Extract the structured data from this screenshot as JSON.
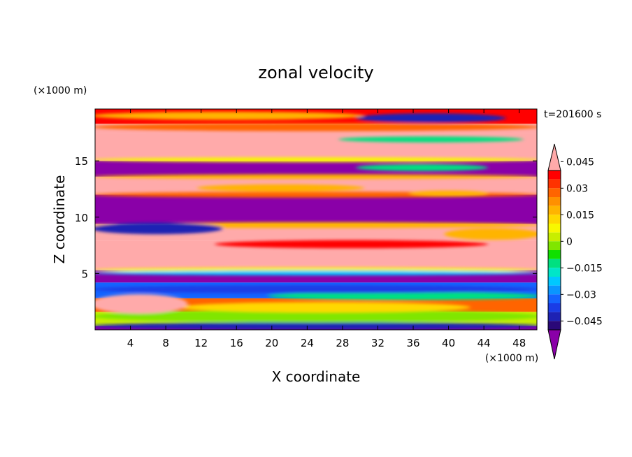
{
  "chart_data": {
    "type": "heatmap",
    "title": "zonal velocity",
    "xlabel": "X coordinate",
    "ylabel": "Z coordinate",
    "x_unit": "(×1000 m)",
    "y_unit": "(×1000 m)",
    "time_label": "t=201600 s",
    "xlim": [
      0,
      50
    ],
    "ylim": [
      0,
      19.6
    ],
    "x_ticks": [
      4,
      8,
      12,
      16,
      20,
      24,
      28,
      32,
      36,
      40,
      44,
      48
    ],
    "y_ticks": [
      5,
      10,
      15
    ],
    "colorbar": {
      "levels": [
        -0.05,
        -0.045,
        -0.04,
        -0.035,
        -0.03,
        -0.025,
        -0.02,
        -0.015,
        -0.01,
        -0.005,
        0,
        0.005,
        0.01,
        0.015,
        0.02,
        0.025,
        0.03,
        0.035,
        0.04,
        0.045,
        0.05
      ],
      "colors": [
        "#8a00a8",
        "#2a0878",
        "#1e22b4",
        "#1a3ce6",
        "#1464ff",
        "#0a96ff",
        "#00c8ff",
        "#00e6c8",
        "#00e080",
        "#10e000",
        "#80e600",
        "#c8ee00",
        "#f8f800",
        "#ffd800",
        "#ffb400",
        "#ff9000",
        "#ff6400",
        "#ff3200",
        "#ff0000",
        "#ffaaaa"
      ],
      "labels": [
        {
          "value": 0.045,
          "text": "0.045"
        },
        {
          "value": 0.03,
          "text": "0.03"
        },
        {
          "value": 0.015,
          "text": "0.015"
        },
        {
          "value": 0,
          "text": "0"
        },
        {
          "value": -0.015,
          "text": "−0.015"
        },
        {
          "value": -0.03,
          "text": "−0.03"
        },
        {
          "value": -0.045,
          "text": "−0.045"
        }
      ]
    },
    "bands": [
      {
        "z0": 0.0,
        "z1": 0.35,
        "value": -0.06
      },
      {
        "z0": 0.35,
        "z1": 1.6,
        "value": 0.005
      },
      {
        "z0": 1.6,
        "z1": 2.8,
        "value": 0.03
      },
      {
        "z0": 2.8,
        "z1": 4.2,
        "value": -0.03
      },
      {
        "z0": 4.2,
        "z1": 5.3,
        "value": -0.06
      },
      {
        "z0": 5.3,
        "z1": 7.9,
        "value": 0.06
      },
      {
        "z0": 7.9,
        "z1": 9.4,
        "value": 0.06
      },
      {
        "z0": 9.4,
        "z1": 12.0,
        "value": -0.06
      },
      {
        "z0": 12.0,
        "z1": 13.6,
        "value": 0.06
      },
      {
        "z0": 13.6,
        "z1": 15.0,
        "value": -0.06
      },
      {
        "z0": 15.0,
        "z1": 17.4,
        "value": 0.06
      },
      {
        "z0": 17.4,
        "z1": 18.3,
        "value": 0.06
      },
      {
        "z0": 18.3,
        "z1": 19.6,
        "value": 0.04
      }
    ],
    "features": [
      {
        "x": [
          0,
          50
        ],
        "z": 0.35,
        "value": -0.04,
        "thick": 0.5
      },
      {
        "x": [
          0,
          50
        ],
        "z": 1.2,
        "value": 0.0,
        "thick": 1.0
      },
      {
        "x": [
          10,
          42
        ],
        "z": 2.0,
        "value": 0.015,
        "thick": 0.8
      },
      {
        "x": [
          0,
          10
        ],
        "z": 2.3,
        "value": 0.06,
        "thick": 1.6
      },
      {
        "x": [
          20,
          50
        ],
        "z": 3.0,
        "value": -0.01,
        "thick": 0.6
      },
      {
        "x": [
          0,
          50
        ],
        "z": 3.6,
        "value": -0.035,
        "thick": 0.6
      },
      {
        "x": [
          0,
          50
        ],
        "z": 5.3,
        "value": 0.01,
        "thick": 0.35
      },
      {
        "x": [
          0,
          50
        ],
        "z": 5.05,
        "value": -0.02,
        "thick": 0.3
      },
      {
        "x": [
          14,
          44
        ],
        "z": 7.6,
        "value": 0.04,
        "thick": 0.6
      },
      {
        "x": [
          0,
          50
        ],
        "z": 9.3,
        "value": 0.02,
        "thick": 0.4
      },
      {
        "x": [
          0,
          14
        ],
        "z": 9.0,
        "value": -0.04,
        "thick": 0.9
      },
      {
        "x": [
          40,
          50
        ],
        "z": 8.5,
        "value": 0.02,
        "thick": 0.9
      },
      {
        "x": [
          0,
          50
        ],
        "z": 12.0,
        "value": 0.03,
        "thick": 0.4
      },
      {
        "x": [
          12,
          30
        ],
        "z": 12.6,
        "value": 0.02,
        "thick": 0.5
      },
      {
        "x": [
          36,
          44
        ],
        "z": 12.1,
        "value": 0.02,
        "thick": 0.4
      },
      {
        "x": [
          0,
          50
        ],
        "z": 13.6,
        "value": 0.02,
        "thick": 0.3
      },
      {
        "x": [
          30,
          44
        ],
        "z": 14.4,
        "value": -0.01,
        "thick": 0.5
      },
      {
        "x": [
          0,
          50
        ],
        "z": 15.1,
        "value": 0.01,
        "thick": 0.3
      },
      {
        "x": [
          28,
          48
        ],
        "z": 16.9,
        "value": -0.01,
        "thick": 0.4
      },
      {
        "x": [
          0,
          50
        ],
        "z": 18.0,
        "value": 0.03,
        "thick": 0.6
      },
      {
        "x": [
          30,
          46
        ],
        "z": 18.8,
        "value": -0.04,
        "thick": 0.7
      },
      {
        "x": [
          0,
          30
        ],
        "z": 19.0,
        "value": 0.02,
        "thick": 0.6
      }
    ]
  }
}
